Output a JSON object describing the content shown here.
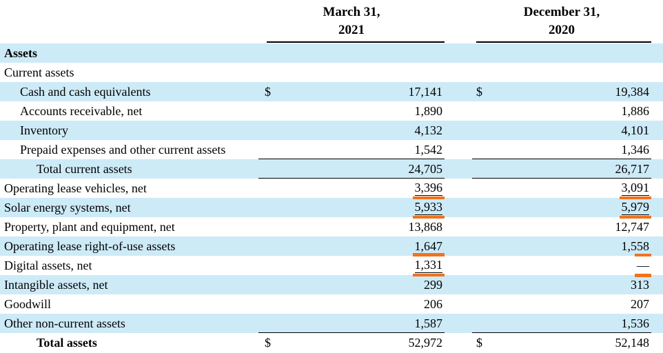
{
  "table": {
    "section": "Assets",
    "colors": {
      "row_shade": "#cdeaf7",
      "annotation": "#f0731d",
      "rule": "#000000"
    },
    "columns": [
      {
        "line1": "March 31,",
        "line2": "2021"
      },
      {
        "line1": "December 31,",
        "line2": "2020"
      }
    ],
    "rows": [
      {
        "label": "Assets",
        "indent": 0,
        "bold": true,
        "shaded": true,
        "cells": [
          null,
          null
        ]
      },
      {
        "label": "Current assets",
        "indent": 0,
        "bold": false,
        "shaded": false,
        "cells": [
          null,
          null
        ]
      },
      {
        "label": "Cash and cash equivalents",
        "indent": 1,
        "shaded": true,
        "cells": [
          {
            "dollar": "$",
            "value": "17,141"
          },
          {
            "dollar": "$",
            "value": "19,384"
          }
        ]
      },
      {
        "label": "Accounts receivable, net",
        "indent": 1,
        "shaded": false,
        "cells": [
          {
            "value": "1,890"
          },
          {
            "value": "1,886"
          }
        ]
      },
      {
        "label": "Inventory",
        "indent": 1,
        "shaded": true,
        "cells": [
          {
            "value": "4,132"
          },
          {
            "value": "4,101"
          }
        ]
      },
      {
        "label": "Prepaid expenses and other current assets",
        "indent": 1,
        "shaded": false,
        "cells": [
          {
            "value": "1,542",
            "rule_below": true
          },
          {
            "value": "1,346",
            "rule_below": true
          }
        ]
      },
      {
        "label": "Total current assets",
        "indent": 2,
        "shaded": true,
        "cells": [
          {
            "value": "24,705",
            "rule_below": true
          },
          {
            "value": "26,717",
            "rule_below": true
          }
        ]
      },
      {
        "label": "Operating lease vehicles, net",
        "indent": 0,
        "shaded": false,
        "cells": [
          {
            "value": "3,396",
            "value_underline": true,
            "orange_below": true
          },
          {
            "value": "3,091",
            "value_underline": true,
            "orange_below": true
          }
        ]
      },
      {
        "label": "Solar energy systems, net",
        "indent": 0,
        "shaded": true,
        "cells": [
          {
            "value": "5,933",
            "value_underline": true,
            "orange_below": true
          },
          {
            "value": "5,979",
            "value_underline": true,
            "orange_below": true
          }
        ]
      },
      {
        "label": "Property, plant and equipment, net",
        "indent": 0,
        "shaded": false,
        "cells": [
          {
            "value": "13,868"
          },
          {
            "value": "12,747"
          }
        ]
      },
      {
        "label": "Operating lease right-of-use assets",
        "indent": 0,
        "shaded": true,
        "cells": [
          {
            "value": "1,647"
          },
          {
            "value": "1,558"
          }
        ]
      },
      {
        "label": "Digital assets, net",
        "indent": 0,
        "shaded": false,
        "cells": [
          {
            "value": "1,331",
            "value_underline": true,
            "orange_above": true,
            "orange_below": true
          },
          {
            "value": "—",
            "orange_above": true,
            "orange_below": true
          }
        ]
      },
      {
        "label": "Intangible assets, net",
        "indent": 0,
        "shaded": true,
        "cells": [
          {
            "value": "299"
          },
          {
            "value": "313"
          }
        ]
      },
      {
        "label": "Goodwill",
        "indent": 0,
        "shaded": false,
        "cells": [
          {
            "value": "206"
          },
          {
            "value": "207"
          }
        ]
      },
      {
        "label": "Other non-current assets",
        "indent": 0,
        "shaded": true,
        "cells": [
          {
            "value": "1,587",
            "rule_below": true
          },
          {
            "value": "1,536",
            "rule_below": true
          }
        ]
      },
      {
        "label": "Total assets",
        "indent": 2,
        "bold": true,
        "shaded": false,
        "cells": [
          {
            "dollar": "$",
            "value": "52,972"
          },
          {
            "dollar": "$",
            "value": "52,148"
          }
        ]
      }
    ]
  }
}
